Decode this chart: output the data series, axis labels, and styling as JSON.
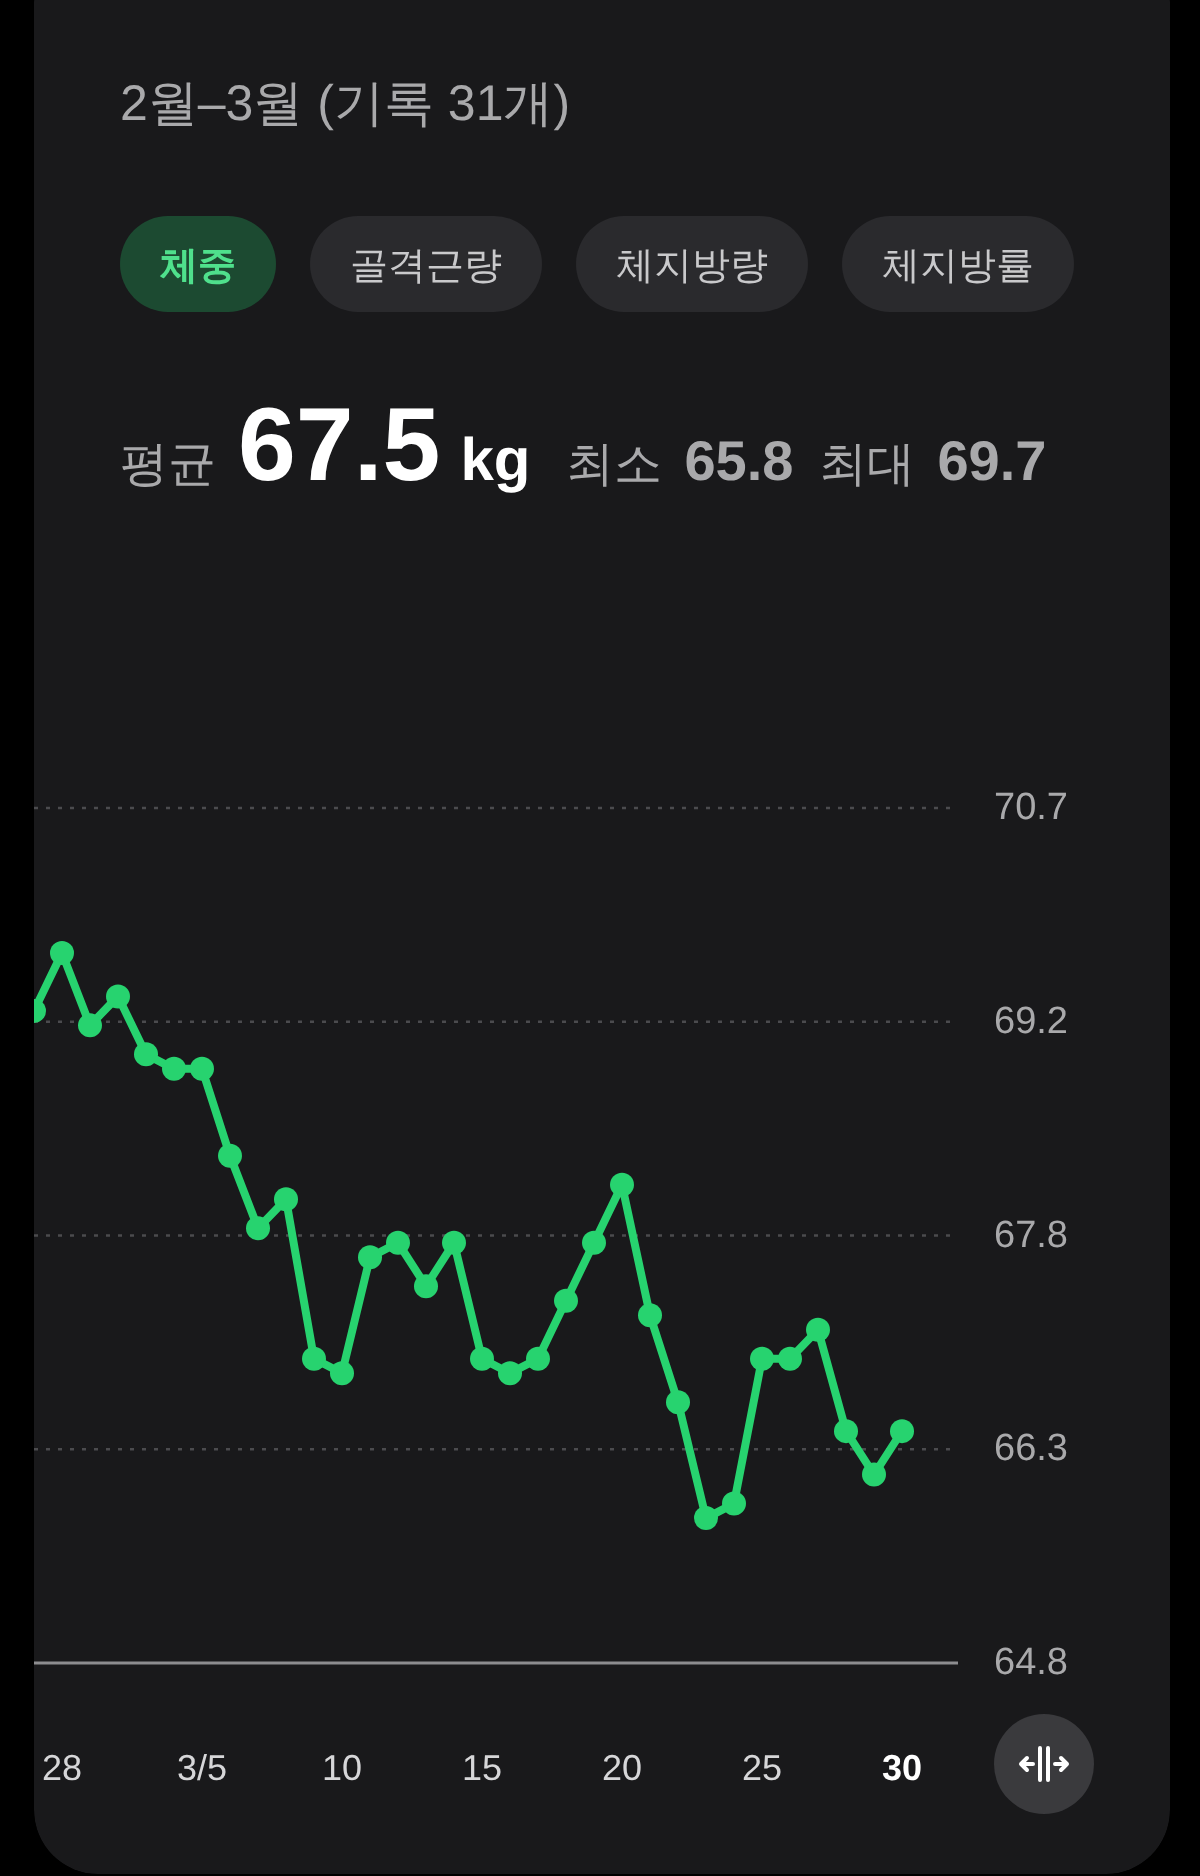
{
  "chart_data": {
    "type": "line",
    "title": "2월–3월 (기록 31개)",
    "annotations": [
      "체중",
      "골격근량",
      "체지방량",
      "체지방률",
      "평균",
      "67.5",
      "kg",
      "최소",
      "65.8",
      "최대",
      "69.7"
    ],
    "x": [
      "--02-27",
      "--02-28",
      "--03-01",
      "--03-02",
      "--03-03",
      "--03-04",
      "--03-05",
      "--03-06",
      "--03-07",
      "--03-08",
      "--03-09",
      "--03-10",
      "--03-11",
      "--03-12",
      "--03-13",
      "--03-14",
      "--03-15",
      "--03-16",
      "--03-17",
      "--03-18",
      "--03-19",
      "--03-20",
      "--03-21",
      "--03-22",
      "--03-23",
      "--03-24",
      "--03-25",
      "--03-26",
      "--03-27",
      "--03-28",
      "--03-29",
      "--03-30"
    ],
    "series": [
      {
        "color": "#27d36f",
        "values": [
          69.3,
          69.7,
          69.2,
          69.4,
          69.0,
          68.9,
          68.9,
          68.3,
          67.8,
          68.0,
          66.9,
          66.8,
          67.6,
          67.7,
          67.4,
          67.7,
          66.9,
          66.8,
          66.9,
          67.3,
          67.7,
          68.1,
          67.2,
          66.6,
          65.8,
          65.9,
          66.9,
          66.9,
          67.1,
          66.4,
          66.1,
          66.4
        ]
      }
    ],
    "xlim": [
      "--02-27",
      "--04-01"
    ],
    "xticks": [
      {
        "value": "--02-28",
        "label": "28"
      },
      {
        "value": "--03-05",
        "label": "3/5"
      },
      {
        "value": "--03-10",
        "label": "10"
      },
      {
        "value": "--03-15",
        "label": "15"
      },
      {
        "value": "--03-20",
        "label": "20"
      },
      {
        "value": "--03-25",
        "label": "25"
      },
      {
        "value": "--03-30",
        "label": "30"
      }
    ],
    "ylim": [
      64.8,
      70.7
    ],
    "yticks": [
      70.7,
      {
        "value": 69.225,
        "label": "69.2"
      },
      {
        "value": 67.75,
        "label": "67.8"
      },
      {
        "value": 66.275,
        "label": "66.3"
      },
      64.8
    ],
    "grid": "y",
    "marker": "circle",
    "line_style": "solid"
  }
}
